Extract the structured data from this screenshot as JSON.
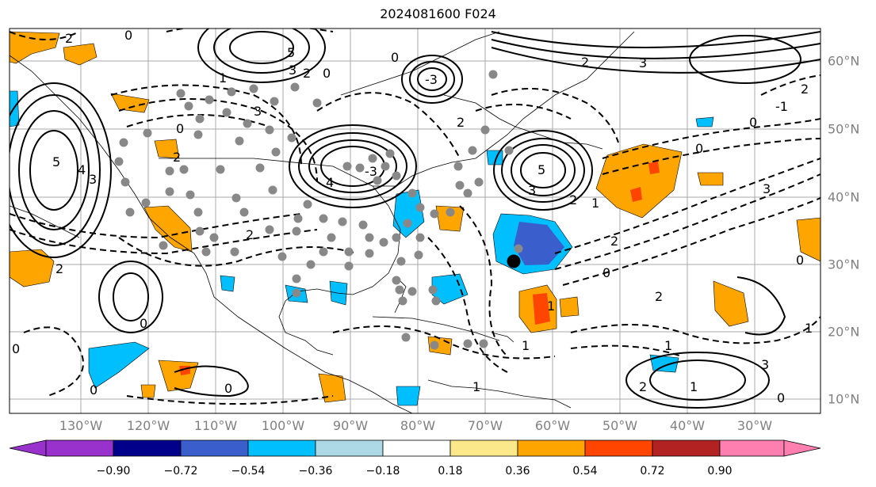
{
  "title": "2024081600 F024",
  "map": {
    "region": "North Atlantic / North America",
    "lon_labels": [
      "130°W",
      "120°W",
      "110°W",
      "100°W",
      "90°W",
      "80°W",
      "70°W",
      "60°W",
      "50°W",
      "40°W",
      "30°W"
    ],
    "lat_labels": [
      "60°N",
      "50°N",
      "40°N",
      "30°N",
      "20°N",
      "10°N"
    ],
    "grid": true,
    "contour_labels": [
      "2",
      "0",
      "5",
      "4",
      "3",
      "2",
      "0",
      "0",
      "5",
      "3",
      "2",
      "0",
      "1",
      "2",
      "0",
      "3",
      "0",
      "-3",
      "4",
      "5",
      "3",
      "2",
      "1",
      "2",
      "0",
      "3",
      "-1",
      "2",
      "3",
      "2",
      "0",
      "-3",
      "2",
      "1",
      "2",
      "1",
      "1",
      "0",
      "1",
      "0",
      "2",
      "0",
      "0",
      "1",
      "3",
      "2",
      "1",
      "0"
    ]
  },
  "colorbar": {
    "ticks": [
      "−0.90",
      "−0.72",
      "−0.54",
      "−0.36",
      "−0.18",
      "0.18",
      "0.36",
      "0.54",
      "0.72",
      "0.90"
    ],
    "colors": [
      "#9932cc",
      "#00008b",
      "#3a5fcd",
      "#00bfff",
      "#add8e6",
      "#ffffff",
      "#fbe88a",
      "#ffa500",
      "#ff4500",
      "#b22222",
      "#ff80b0"
    ]
  }
}
